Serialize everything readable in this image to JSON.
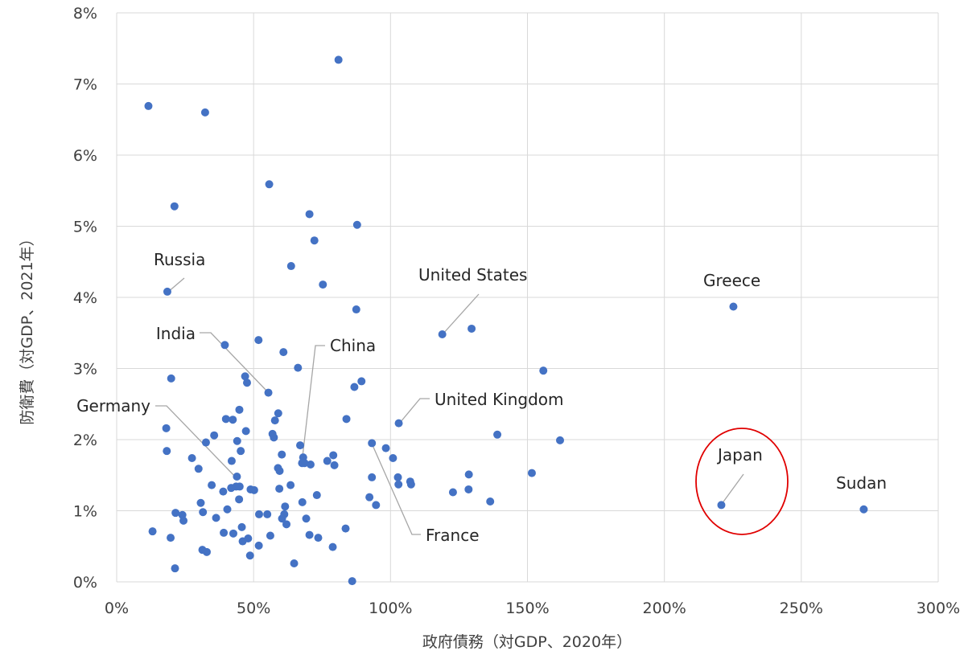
{
  "chart_data": {
    "type": "scatter",
    "xlabel": "政府債務（対GDP、2020年）",
    "ylabel": "防衛費（対GDP、2021年）",
    "xlim": [
      0,
      300
    ],
    "ylim": [
      0,
      8
    ],
    "x_unit": "%",
    "y_unit": "%",
    "x_ticks": [
      "0%",
      "50%",
      "100%",
      "150%",
      "200%",
      "250%",
      "300%"
    ],
    "y_ticks": [
      "0%",
      "1%",
      "2%",
      "3%",
      "4%",
      "5%",
      "6%",
      "7%",
      "8%"
    ],
    "grid": true,
    "color": "#4472c4",
    "highlight_color": "#e00000",
    "labeled_points": [
      {
        "label": "Russia",
        "x": 18.5,
        "y": 4.08
      },
      {
        "label": "India",
        "x": 55.4,
        "y": 2.66
      },
      {
        "label": "China",
        "x": 68.1,
        "y": 1.75
      },
      {
        "label": "Germany",
        "x": 43.9,
        "y": 1.48
      },
      {
        "label": "United States",
        "x": 118.9,
        "y": 3.48
      },
      {
        "label": "Greece",
        "x": 225.2,
        "y": 3.87
      },
      {
        "label": "United Kingdom",
        "x": 103.0,
        "y": 2.23
      },
      {
        "label": "France",
        "x": 93.2,
        "y": 1.95
      },
      {
        "label": "Japan",
        "x": 220.8,
        "y": 1.08
      },
      {
        "label": "Sudan",
        "x": 272.8,
        "y": 1.02
      }
    ],
    "x": [
      11.6,
      32.3,
      21.1,
      81.0,
      55.7,
      70.4,
      87.8,
      72.2,
      63.7,
      75.3,
      87.5,
      129.6,
      51.8,
      39.5,
      60.9,
      66.2,
      155.8,
      19.9,
      89.4,
      46.9,
      47.6,
      86.8,
      59.0,
      39.9,
      42.4,
      57.8,
      56.9,
      18.1,
      35.6,
      44.8,
      57.4,
      47.2,
      32.6,
      44.0,
      45.3,
      60.3,
      67.0,
      79.1,
      76.9,
      68.6,
      67.7,
      70.8,
      79.5,
      18.3,
      27.5,
      42.0,
      58.9,
      59.5,
      29.9,
      43.6,
      59.4,
      63.5,
      34.7,
      41.8,
      48.9,
      44.9,
      50.2,
      38.9,
      73.1,
      98.3,
      100.9,
      102.9,
      107.2,
      107.5,
      92.3,
      94.7,
      128.6,
      128.5,
      122.8,
      136.4,
      151.6,
      139.0,
      161.9,
      30.7,
      44.7,
      67.8,
      61.5,
      36.3,
      24.0,
      21.5,
      24.4,
      31.5,
      40.4,
      52.0,
      55.0,
      61.2,
      60.4,
      62.0,
      13.1,
      19.7,
      45.7,
      42.6,
      39.1,
      48.0,
      56.1,
      70.4,
      73.6,
      83.6,
      31.3,
      32.9,
      46.0,
      51.9,
      69.2,
      78.9,
      48.7,
      102.7,
      64.8,
      21.3,
      86.0,
      83.9,
      93.2
    ],
    "y": [
      6.69,
      6.6,
      5.28,
      7.34,
      5.59,
      5.17,
      5.02,
      4.8,
      4.44,
      4.18,
      3.83,
      3.56,
      3.4,
      3.33,
      3.23,
      3.01,
      2.97,
      2.86,
      2.82,
      2.89,
      2.8,
      2.74,
      2.37,
      2.29,
      2.28,
      2.27,
      2.08,
      2.16,
      2.06,
      2.42,
      2.03,
      2.12,
      1.96,
      1.98,
      1.84,
      1.79,
      1.92,
      1.78,
      1.7,
      1.67,
      1.67,
      1.65,
      1.64,
      1.84,
      1.74,
      1.7,
      1.6,
      1.56,
      1.59,
      1.34,
      1.31,
      1.36,
      1.36,
      1.32,
      1.3,
      1.34,
      1.29,
      1.27,
      1.22,
      1.88,
      1.74,
      1.37,
      1.41,
      1.37,
      1.19,
      1.08,
      1.51,
      1.3,
      1.26,
      1.13,
      1.53,
      2.07,
      1.99,
      1.11,
      1.16,
      1.12,
      1.06,
      0.9,
      0.94,
      0.97,
      0.86,
      0.98,
      1.02,
      0.95,
      0.95,
      0.95,
      0.89,
      0.81,
      0.71,
      0.62,
      0.77,
      0.68,
      0.69,
      0.61,
      0.65,
      0.66,
      0.62,
      0.75,
      0.45,
      0.42,
      0.57,
      0.51,
      0.89,
      0.49,
      0.37,
      1.47,
      0.26,
      0.19,
      0.01,
      2.29,
      1.47
    ],
    "highlight": {
      "type": "ellipse",
      "around": "Japan"
    }
  }
}
